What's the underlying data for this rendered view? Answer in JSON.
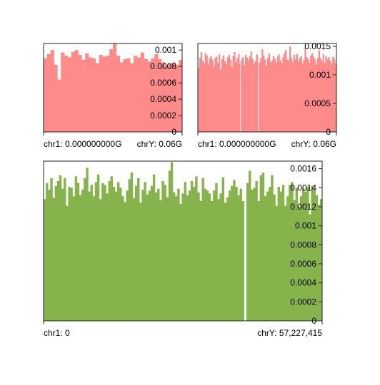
{
  "colors": {
    "panel1": "#ff8a8a",
    "panel2": "#ff8a8a",
    "panel3": "#86b34b",
    "frame": "#222222"
  },
  "chart_data": [
    {
      "type": "bar",
      "title": "",
      "x_start_label": "chr1: 0.000000000G",
      "x_end_label": "chrY: 0.06G",
      "ylim": [
        0,
        0.00108
      ],
      "yticks": [
        "0.001",
        "0.0008",
        "0.0006",
        "0.0004",
        "0.0002",
        "0"
      ],
      "ytick_values": [
        0.001,
        0.0008,
        0.0006,
        0.0004,
        0.0002,
        0
      ],
      "values": [
        0.0009,
        0.00095,
        0.001,
        0.00082,
        0.00064,
        0.00097,
        0.00093,
        0.00091,
        0.00098,
        0.001,
        0.00094,
        0.00088,
        0.00096,
        0.00091,
        0.0009,
        0.00084,
        0.00094,
        0.00092,
        0.00093,
        0.00101,
        0.0011,
        0.00093,
        0.00085,
        0.00089,
        0.0009,
        0.00084,
        0.00093,
        0.00091,
        0.00097,
        0.00089,
        0.00086,
        0.0009,
        0.00095,
        0.00089,
        0.00085,
        0.0008,
        0.00083,
        0.00085,
        0.00082,
        0.00088
      ]
    },
    {
      "type": "bar",
      "title": "",
      "x_start_label": "chr1: 0.000000000G",
      "x_end_label": "chrY: 0.06G",
      "ylim": [
        0,
        0.00155
      ],
      "yticks": [
        "0.0015",
        "0.001",
        "0.0005",
        "0"
      ],
      "ytick_values": [
        0.0015,
        0.001,
        0.0005,
        0
      ],
      "values": [
        0.00112,
        0.0013,
        0.0014,
        0.00125,
        0.0012,
        0.00138,
        0.00134,
        0.00118,
        0.00129,
        0.00133,
        0.00127,
        0.00115,
        0.0013,
        0.00132,
        0.00121,
        0.00136,
        0.00109,
        0.00128,
        0.00134,
        0.00124,
        0.00119,
        0.00131,
        0.00135,
        0.00127,
        0.00114,
        0.00133,
        0.0014,
        0.00122,
        0.00129,
        0.00137,
        0.0012,
        0.00126,
        0.00131,
        0.00117,
        0.00135,
        0.0013,
        0.00125,
        0.00132,
        0.00141,
        0.00128,
        0.00119,
        0.00124,
        0.00136,
        0.00131,
        0.00121,
        0.00129,
        0.00145,
        0.00134,
        0.00127,
        0.00116,
        0.0013,
        0.00138,
        0.00122,
        0.00125,
        0.00133,
        0.00128,
        0.0012,
        0.00132,
        0.00136,
        0.00126,
        0.0012,
        0.00131,
        0.00139,
        0.00144,
        0.00127,
        0.00125,
        0.0015,
        0.0013,
        0.00122,
        0.00135,
        0.00128,
        0.00137,
        0.00124,
        0.0013,
        0.00133,
        0.0012,
        0.00126,
        0.00147,
        0.00131,
        0.00128,
        0.00121,
        0.00134,
        0.00138,
        0.00132,
        0.00127,
        0.00118,
        0.0013,
        0.00143,
        0.00129,
        0.00124,
        0.00136,
        0.00121,
        0.00133,
        0.00127,
        0.00131,
        0.00125,
        0.00119,
        0.00132,
        0.00128,
        0.00121
      ],
      "gaps": [
        30,
        43
      ]
    },
    {
      "type": "bar",
      "title": "",
      "x_start_label": "chr1: 0",
      "x_end_label": "chrY: 57,227,415",
      "ylim": [
        0,
        0.00168
      ],
      "yticks": [
        "0.0016",
        "0.0014",
        "0.0012",
        "0.001",
        "0.0008",
        "0.0006",
        "0.0004",
        "0.0002",
        "0"
      ],
      "ytick_values": [
        0.0016,
        0.0014,
        0.0012,
        0.001,
        0.0008,
        0.0006,
        0.0004,
        0.0002,
        0
      ],
      "values": [
        0.00128,
        0.00145,
        0.00138,
        0.0015,
        0.00129,
        0.00142,
        0.00147,
        0.00153,
        0.00139,
        0.0015,
        0.00121,
        0.00141,
        0.0014,
        0.00131,
        0.00152,
        0.00145,
        0.00132,
        0.00138,
        0.0015,
        0.00161,
        0.00136,
        0.00143,
        0.00131,
        0.00146,
        0.00154,
        0.00128,
        0.00145,
        0.00143,
        0.00134,
        0.00147,
        0.00152,
        0.00141,
        0.00136,
        0.00146,
        0.0014,
        0.00131,
        0.00125,
        0.00137,
        0.00149,
        0.00156,
        0.00129,
        0.00142,
        0.0015,
        0.00124,
        0.00138,
        0.00146,
        0.00133,
        0.00137,
        0.00142,
        0.00154,
        0.00135,
        0.00139,
        0.00127,
        0.00147,
        0.00143,
        0.0013,
        0.00158,
        0.00167,
        0.00135,
        0.00131,
        0.00139,
        0.00123,
        0.00134,
        0.00146,
        0.00132,
        0.00137,
        0.00147,
        0.00141,
        0.00152,
        0.00135,
        0.00126,
        0.0015,
        0.00139,
        0.00137,
        0.00134,
        0.00126,
        0.00137,
        0.00145,
        0.00128,
        0.00134,
        0.00151,
        0.00124,
        0.0013,
        0.00137,
        0.00142,
        0.00148,
        0.00141,
        0.00132,
        0.00139,
        0.00126,
        0.0,
        0.00145,
        0.00158,
        0.00138,
        0.0014,
        0.00147,
        0.00126,
        0.00153,
        0.00156,
        0.00131,
        0.00136,
        0.00141,
        0.00153,
        0.00133,
        0.00121,
        0.00141,
        0.00136,
        0.00143,
        0.00121,
        0.00131,
        0.00143,
        0.00146,
        0.00127,
        0.0014,
        0.0012,
        0.00131,
        0.00139,
        0.00136,
        0.00141,
        0.00112,
        0.00142,
        0.00137,
        0.00132,
        0.00122,
        0.00128
      ]
    }
  ]
}
